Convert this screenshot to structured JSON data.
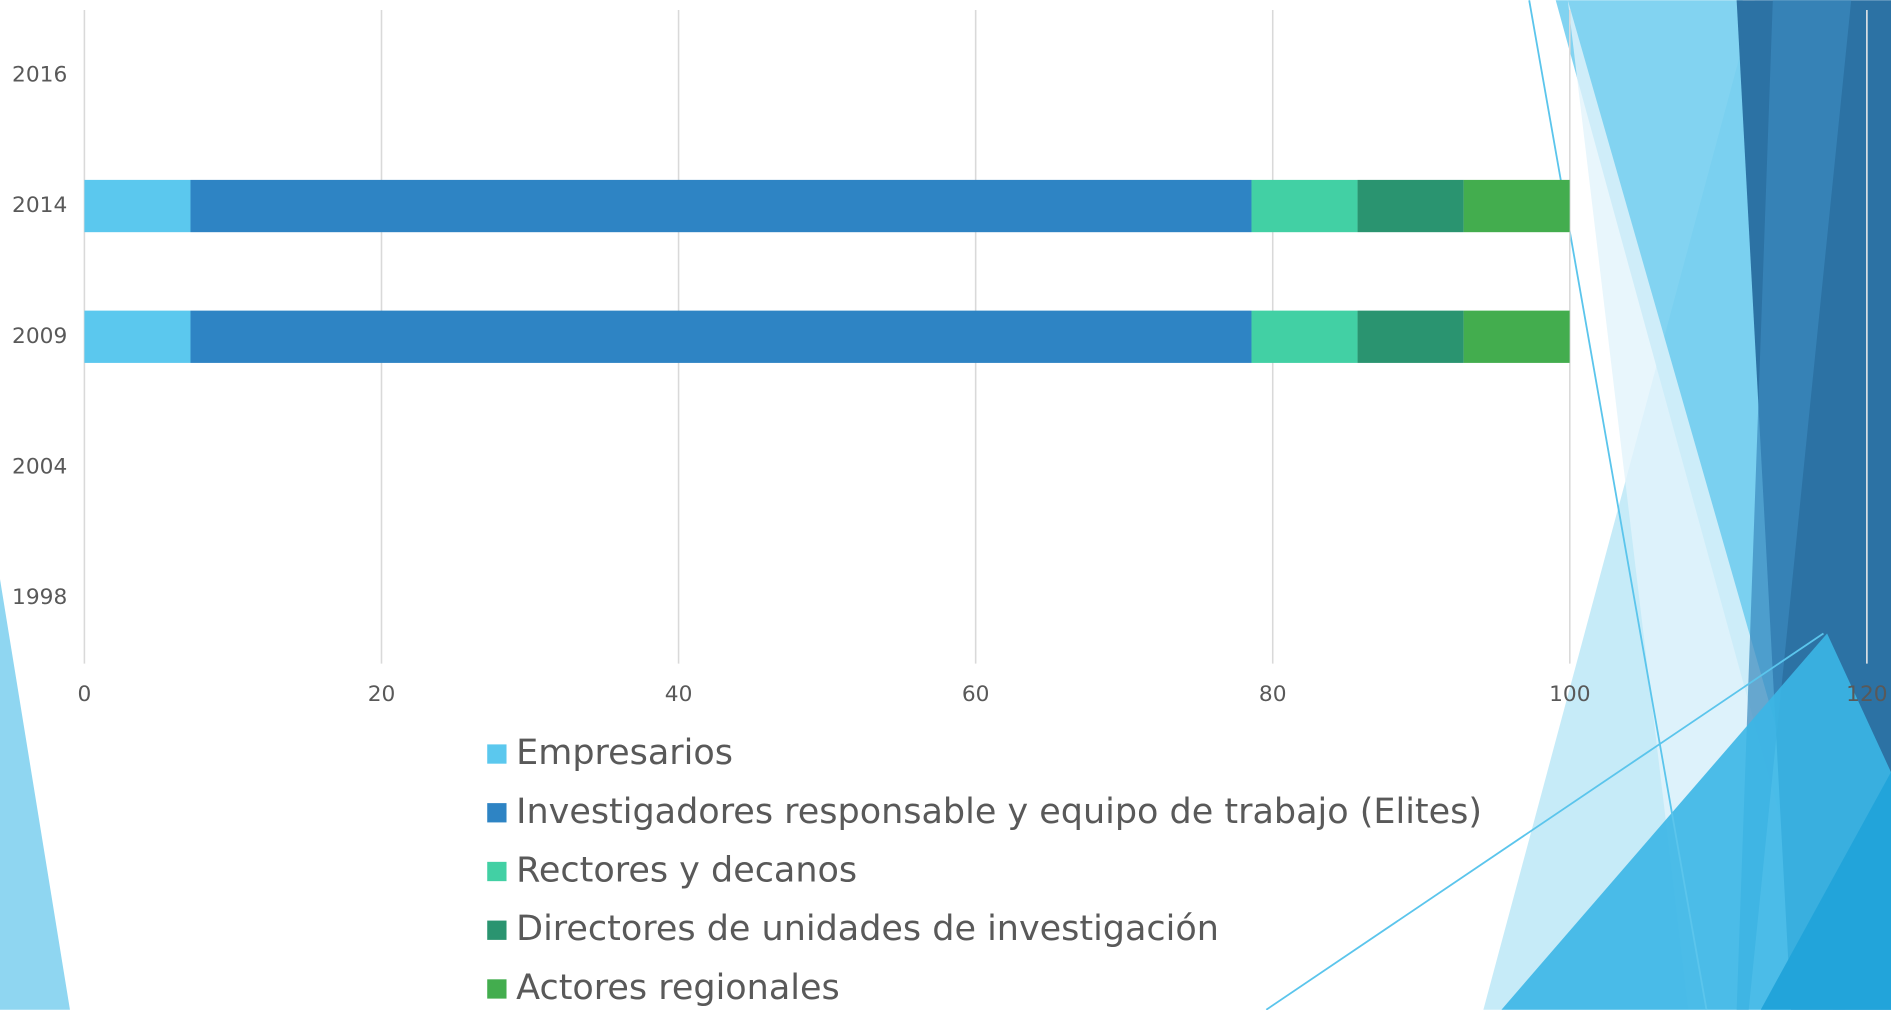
{
  "chart_data": {
    "type": "stacked_bar_horizontal",
    "categories": [
      "1998",
      "2004",
      "2009",
      "2014",
      "2016"
    ],
    "series": [
      {
        "name": "Empresarios",
        "color": "#5bc8ee",
        "values": [
          null,
          null,
          7.14,
          7.14,
          null
        ]
      },
      {
        "name": "Investigadores responsable y equipo de trabajo (Elites)",
        "color": "#2e84c4",
        "values": [
          null,
          null,
          71.43,
          71.43,
          null
        ]
      },
      {
        "name": "Rectores y decanos",
        "color": "#42d0a4",
        "values": [
          null,
          null,
          7.14,
          7.14,
          null
        ]
      },
      {
        "name": "Directores de unidades de investigación",
        "color": "#2a9470",
        "values": [
          null,
          null,
          7.14,
          7.14,
          null
        ]
      },
      {
        "name": "Actores regionales",
        "color": "#43ad4e",
        "values": [
          null,
          null,
          7.14,
          7.14,
          null
        ]
      }
    ],
    "xlim": [
      0,
      120
    ],
    "xticks": [
      0,
      20,
      40,
      60,
      80,
      100,
      120
    ],
    "grid": true,
    "legend": "bottom"
  }
}
